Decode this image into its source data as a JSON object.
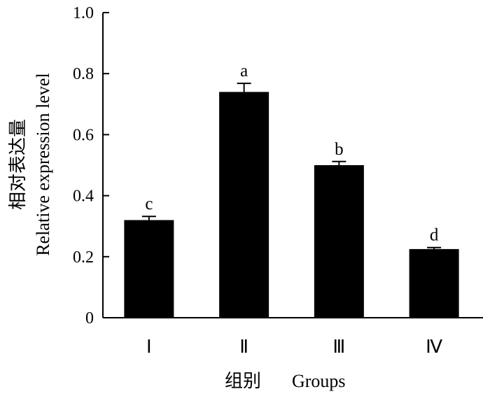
{
  "chart_data": {
    "type": "bar",
    "categories": [
      "Ⅰ",
      "Ⅱ",
      "Ⅲ",
      "Ⅳ"
    ],
    "values": [
      0.32,
      0.74,
      0.5,
      0.225
    ],
    "errors": [
      0.012,
      0.028,
      0.012,
      0.005
    ],
    "significance": [
      "c",
      "a",
      "b",
      "d"
    ],
    "ylim": [
      0,
      1.0
    ],
    "yticks": [
      0,
      0.2,
      0.4,
      0.6,
      0.8,
      1.0
    ],
    "ytick_labels": [
      "0",
      "0.2",
      "0.4",
      "0.6",
      "0.8",
      "1.0"
    ],
    "ylabel_cn": "相对表达量",
    "ylabel_en": "Relative expression level",
    "xlabel_cn": "组别",
    "xlabel_en": "Groups",
    "bar_color": "#000000",
    "grid": false
  }
}
